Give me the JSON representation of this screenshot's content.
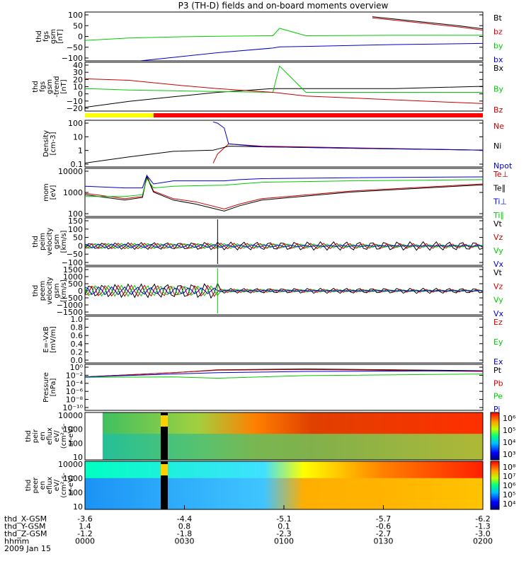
{
  "title": "P3 (TH-D) fields and on-board moments overview",
  "chart_data": [
    {
      "type": "line",
      "panel": "fgs_gsm",
      "ylabel": [
        "thd",
        "fgs",
        "gsm",
        "[nT]"
      ],
      "yticks": [
        "100",
        "50",
        "0",
        "−50",
        "−100"
      ],
      "ylim": [
        -100,
        110
      ],
      "series": [
        {
          "name": "Bt",
          "color": "#000000",
          "x": [
            0,
            60,
            70,
            100,
            130,
            150,
            170,
            180
          ],
          "y": [
            null,
            null,
            null,
            null,
            90,
            70,
            50,
            38
          ]
        },
        {
          "name": "bz",
          "color": "#cc0000",
          "x": [
            0,
            60,
            70,
            100,
            130,
            150,
            170,
            180
          ],
          "y": [
            null,
            null,
            null,
            null,
            85,
            65,
            45,
            32
          ]
        },
        {
          "name": "by",
          "color": "#00cc00",
          "x": [
            0,
            20,
            40,
            60,
            85,
            88,
            100,
            140,
            180
          ],
          "y": [
            -12,
            -2,
            3,
            6,
            8,
            40,
            8,
            10,
            10
          ]
        },
        {
          "name": "bx",
          "color": "#0000cc",
          "x": [
            0,
            20,
            40,
            60,
            85,
            88,
            100,
            140,
            180
          ],
          "y": [
            null,
            -105,
            -85,
            -65,
            -45,
            -40,
            -38,
            -30,
            -25
          ]
        }
      ]
    },
    {
      "type": "line",
      "panel": "fgs_gsm_trend",
      "ylabel": [
        "thd",
        "fgs",
        "gsm",
        "-trend",
        "[nT]"
      ],
      "yticks": [
        "40",
        "30",
        "20",
        "10",
        "0",
        "−10",
        "−20"
      ],
      "ylim": [
        -25,
        40
      ],
      "series": [
        {
          "name": "Bx",
          "color": "#000000",
          "x": [
            0,
            20,
            40,
            60,
            85,
            100,
            140,
            180
          ],
          "y": [
            -20,
            -12,
            -6,
            0,
            5,
            5,
            5,
            8
          ]
        },
        {
          "name": "By",
          "color": "#00cc00",
          "x": [
            0,
            20,
            40,
            60,
            85,
            88,
            100,
            140,
            180
          ],
          "y": [
            5,
            3,
            2,
            1,
            0,
            35,
            0,
            0,
            0
          ]
        },
        {
          "name": "Bz",
          "color": "#cc0000",
          "x": [
            0,
            20,
            40,
            60,
            85,
            100,
            140,
            180
          ],
          "y": [
            18,
            16,
            10,
            5,
            0,
            -5,
            -10,
            -15
          ]
        }
      ]
    },
    {
      "type": "line",
      "panel": "density",
      "ylabel": [
        "Density",
        "[cm-3]"
      ],
      "yticks": [
        "100",
        "10",
        "1",
        "0.1"
      ],
      "ylim": [
        0.05,
        200
      ],
      "log": true,
      "series": [
        {
          "name": "Ne",
          "color": "#cc0000",
          "x": [
            0,
            20,
            40,
            58,
            60,
            65,
            80,
            120,
            180
          ],
          "y": [
            null,
            null,
            null,
            0.1,
            0.5,
            3,
            2,
            1.5,
            1
          ]
        },
        {
          "name": "Ni",
          "color": "#000000",
          "x": [
            0,
            20,
            40,
            58,
            60,
            65,
            80,
            120,
            180
          ],
          "y": [
            0.1,
            0.3,
            0.8,
            1,
            1.2,
            2,
            1.8,
            1.4,
            1
          ]
        },
        {
          "name": "Npot",
          "color": "#0000cc",
          "x": [
            58,
            60,
            63,
            65,
            80,
            120,
            180
          ],
          "y": [
            150,
            120,
            50,
            3,
            1.8,
            1.4,
            1
          ]
        }
      ]
    },
    {
      "type": "line",
      "panel": "mom_temp",
      "ylabel": [
        "mom",
        "[eV]"
      ],
      "yticks": [
        "10000",
        "1000",
        "100"
      ],
      "ylim": [
        30,
        15000
      ],
      "log": true,
      "series": [
        {
          "name": "Te⊥",
          "color": "#cc0000",
          "x": [
            0,
            18,
            26,
            28,
            31,
            40,
            50,
            63,
            70,
            80,
            120,
            180
          ],
          "y": [
            600,
            300,
            400,
            6000,
            800,
            300,
            200,
            80,
            150,
            300,
            800,
            2000
          ]
        },
        {
          "name": "Te∥",
          "color": "#000000",
          "x": [
            0,
            18,
            26,
            28,
            31,
            40,
            50,
            63,
            70,
            80,
            120,
            180
          ],
          "y": [
            500,
            250,
            350,
            5000,
            700,
            250,
            150,
            60,
            120,
            250,
            700,
            1800
          ]
        },
        {
          "name": "Ti⊥",
          "color": "#0000cc",
          "x": [
            0,
            18,
            26,
            28,
            31,
            40,
            50,
            63,
            70,
            80,
            120,
            180
          ],
          "y": [
            1500,
            1200,
            1200,
            6000,
            2000,
            3000,
            3000,
            3000,
            3500,
            4000,
            4500,
            5000
          ]
        },
        {
          "name": "Ti∥",
          "color": "#00cc00",
          "x": [
            0,
            18,
            26,
            28,
            31,
            40,
            50,
            63,
            70,
            80,
            120,
            180
          ],
          "y": [
            400,
            400,
            500,
            4000,
            1200,
            1500,
            1600,
            1700,
            2000,
            2500,
            3000,
            3500
          ]
        }
      ]
    },
    {
      "type": "line",
      "panel": "peim_velocity",
      "ylabel": [
        "thd",
        "peim",
        "velocity",
        "gsm",
        "[km/s]"
      ],
      "yticks": [
        "150",
        "100",
        "50",
        "0",
        "−50",
        "−100"
      ],
      "ylim": [
        -110,
        160
      ],
      "series": [
        {
          "name": "Vt",
          "color": "#000000"
        },
        {
          "name": "Vz",
          "color": "#cc0000"
        },
        {
          "name": "Vy",
          "color": "#00cc00"
        },
        {
          "name": "Vx",
          "color": "#0000cc"
        }
      ]
    },
    {
      "type": "line",
      "panel": "peem_velocity",
      "ylabel": [
        "thd",
        "peem",
        "velocity",
        "gsm",
        "[km/s]"
      ],
      "yticks": [
        "1500",
        "1000",
        "500",
        "0",
        "−500",
        "−1000",
        "−1500"
      ],
      "ylim": [
        -1500,
        1500
      ],
      "series": [
        {
          "name": "Vt",
          "color": "#000000"
        },
        {
          "name": "Vz",
          "color": "#cc0000"
        },
        {
          "name": "Vy",
          "color": "#00cc00"
        },
        {
          "name": "Vx",
          "color": "#0000cc"
        }
      ]
    },
    {
      "type": "line",
      "panel": "e_vxb",
      "ylabel": [
        "E=-VxB",
        "[mV/m]"
      ],
      "yticks": [
        "1.0",
        "0.8",
        "0.6",
        "0.4",
        "0.2",
        "0.0"
      ],
      "ylim": [
        0,
        1
      ],
      "series": [
        {
          "name": "Ez",
          "color": "#cc0000"
        },
        {
          "name": "Ey",
          "color": "#00cc00"
        },
        {
          "name": "Ex",
          "color": "#0000cc"
        }
      ]
    },
    {
      "type": "line",
      "panel": "pressure",
      "ylabel": [
        "Pressure",
        "[nPa]"
      ],
      "yticks": [
        "10⁰",
        "10⁻²",
        "10⁻⁴",
        "10⁻⁶",
        "10⁻⁸",
        "10⁻¹⁰"
      ],
      "ylim": [
        1e-10,
        10
      ],
      "log": true,
      "series": [
        {
          "name": "Pt",
          "color": "#000000",
          "x": [
            0,
            40,
            60,
            100,
            180
          ],
          "y": [
            0.01,
            0.1,
            0.5,
            0.8,
            0.3
          ]
        },
        {
          "name": "Pb",
          "color": "#cc0000",
          "x": [
            0,
            40,
            60,
            100,
            180
          ],
          "y": [
            0.01,
            0.1,
            0.4,
            0.6,
            0.2
          ]
        },
        {
          "name": "Pe",
          "color": "#00cc00",
          "x": [
            0,
            40,
            60,
            100,
            180
          ],
          "y": [
            0.008,
            0.01,
            0.005,
            0.02,
            0.05
          ]
        },
        {
          "name": "Pi",
          "color": "#0000cc",
          "x": [
            0,
            40,
            60,
            100,
            180
          ],
          "y": [
            0.01,
            0.05,
            0.1,
            0.2,
            0.3
          ]
        }
      ]
    },
    {
      "type": "heatmap",
      "panel": "peir_en_eflux",
      "ylabel": [
        "thd",
        "peir",
        "en",
        "eflux",
        "eV/",
        "(cm²-s-",
        "sr-eV)"
      ],
      "yticks": [
        "10000",
        "1000",
        "100",
        "10"
      ],
      "colorbar_ticks": [
        "10⁶",
        "10⁵",
        "10⁴",
        "10³"
      ]
    },
    {
      "type": "heatmap",
      "panel": "peer_en_eflux",
      "ylabel": [
        "thd",
        "peer",
        "en",
        "eflux",
        "eV/",
        "(cm²-s-",
        "sr-eV)"
      ],
      "yticks": [
        "10000",
        "1000",
        "100",
        "10"
      ],
      "colorbar_ticks": [
        "10⁸",
        "10⁷",
        "10⁶",
        "10⁵",
        "10⁴"
      ]
    }
  ],
  "xaxis": {
    "rows": [
      {
        "label": "thd_X-GSM",
        "values": [
          "-3.6",
          "-4.4",
          "-5.1",
          "-5.7",
          "-6.2"
        ]
      },
      {
        "label": "thd_Y-GSM",
        "values": [
          "1.4",
          "0.8",
          "0.1",
          "-0.6",
          "-1.3"
        ]
      },
      {
        "label": "thd_Z-GSM",
        "values": [
          "-1.2",
          "-1.8",
          "-2.3",
          "-2.7",
          "-3.0"
        ]
      },
      {
        "label": "hhmm",
        "values": [
          "0000",
          "0030",
          "0100",
          "0130",
          "0200"
        ]
      }
    ],
    "date": "2009 Jan 15"
  }
}
